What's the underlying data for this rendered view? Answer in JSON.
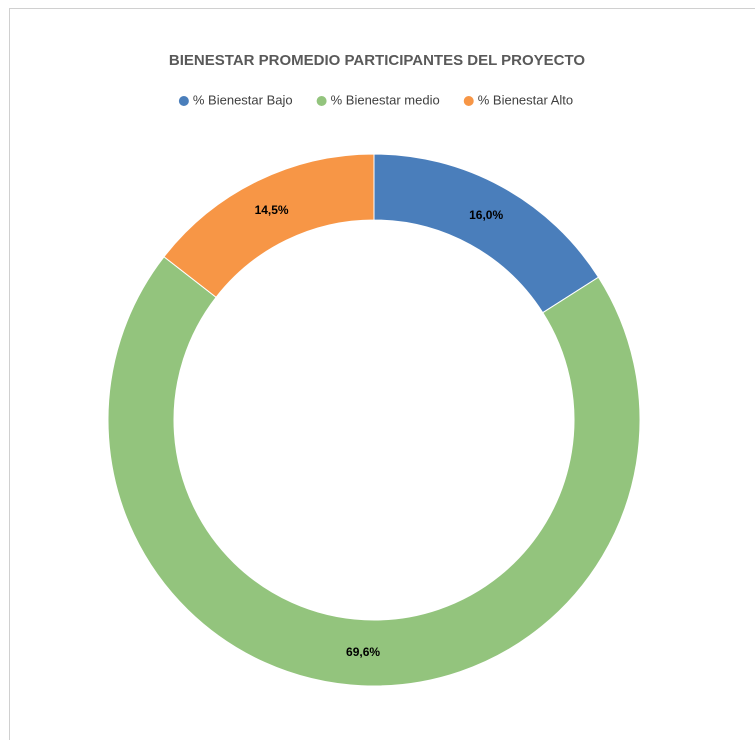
{
  "chart_data": {
    "type": "donut",
    "title": "BIENESTAR PROMEDIO PARTICIPANTES DEL PROYECTO",
    "categories": [
      "% Bienestar Bajo",
      "% Bienestar medio",
      "% Bienestar Alto"
    ],
    "values": [
      16.0,
      69.6,
      14.5
    ],
    "value_labels": [
      "16,0%",
      "69,6%",
      "14,5%"
    ],
    "colors": [
      "#4a7ebb",
      "#93c47d",
      "#f79646"
    ],
    "legend": "top"
  }
}
